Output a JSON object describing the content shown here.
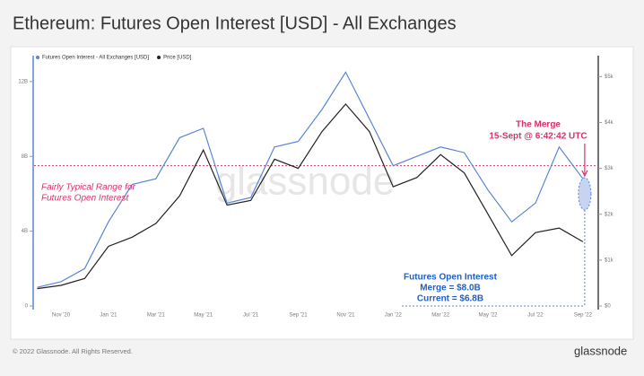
{
  "chart_data": {
    "type": "line",
    "title": "Ethereum: Futures Open Interest [USD] - All Exchanges",
    "footer": "© 2022 Glassnode. All Rights Reserved.",
    "watermark": "glassnode",
    "logo": "glassnode",
    "categories": [
      null,
      "Nov '20",
      null,
      "Jan '21",
      null,
      "Mar '21",
      null,
      "May '21",
      null,
      "Jul '21",
      null,
      "Sep '21",
      null,
      "Nov '21",
      null,
      "Jan '22",
      null,
      "Mar '22",
      null,
      "May '22",
      null,
      "Jul '22",
      null,
      "Sep '22"
    ],
    "series": [
      {
        "name": "Futures Open Interest - All Exchanges [USD]",
        "color": "#5b84d6",
        "values": [
          1.0,
          1.3,
          2.0,
          4.5,
          6.5,
          6.8,
          9.0,
          9.5,
          5.5,
          5.8,
          8.5,
          8.8,
          10.5,
          12.5,
          10.0,
          7.5,
          8.0,
          8.5,
          8.2,
          6.2,
          4.5,
          5.5,
          8.5,
          6.8
        ]
      },
      {
        "name": "Price [USD]",
        "color": "#222222",
        "axis": "y2",
        "values": [
          380,
          450,
          600,
          1300,
          1500,
          1800,
          2400,
          3400,
          2200,
          2300,
          3200,
          3000,
          3800,
          4400,
          3800,
          2600,
          2800,
          3300,
          2900,
          2000,
          1100,
          1600,
          1700,
          1400
        ]
      }
    ],
    "ylim": [
      0,
      13
    ],
    "yticks": [
      0,
      {
        "value": 4,
        "label": "4B"
      },
      {
        "value": 8,
        "label": "8B"
      },
      {
        "value": 12,
        "label": "12B"
      }
    ],
    "y2lim": [
      0,
      5300
    ],
    "y2ticks": [
      {
        "value": 0,
        "label": "$0"
      },
      {
        "value": 1000,
        "label": "$1k"
      },
      {
        "value": 2000,
        "label": "$2k"
      },
      {
        "value": 3000,
        "label": "$3k"
      },
      {
        "value": 4000,
        "label": "$4k"
      },
      {
        "value": 5000,
        "label": "$5k"
      }
    ],
    "reference_line": 7.5,
    "annotations": {
      "typical_range": [
        "Fairly Typical Range for",
        "Futures Open Interest"
      ],
      "merge": [
        "The Merge",
        "15-Sept @ 6:42:42 UTC"
      ],
      "open_interest": [
        "Futures Open Interest",
        "Merge = $8.0B",
        "Current = $6.8B"
      ]
    }
  }
}
